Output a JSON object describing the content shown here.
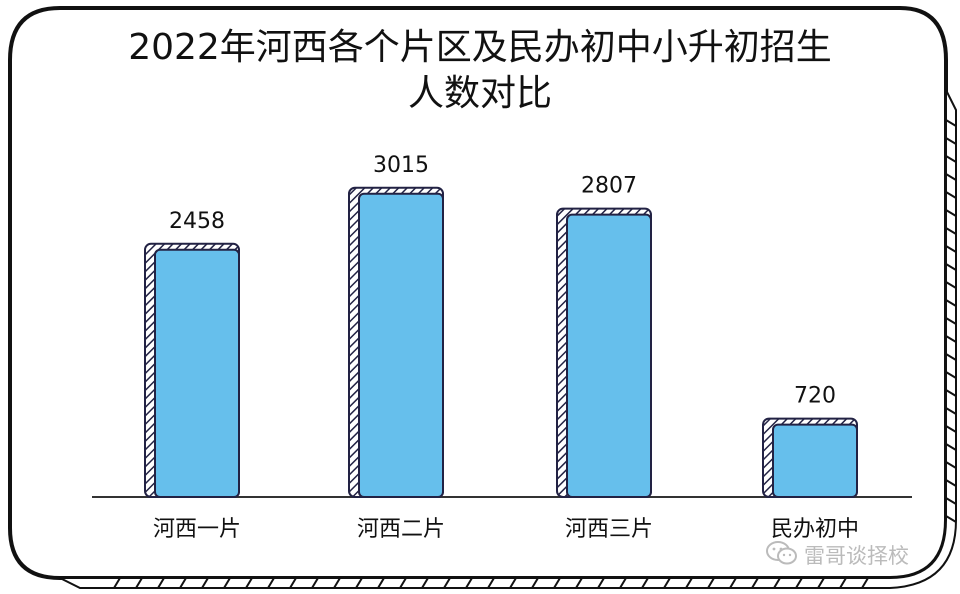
{
  "title_line1": "2022年河西各个片区及民办初中小升初招生",
  "title_line2": "人数对比",
  "colors": {
    "bar_fill": "#66bfec",
    "bar_outline": "#222244",
    "baseline": "#333333",
    "border": "#111111"
  },
  "watermark": {
    "text": "雷哥谈择校",
    "icon": "wechat-icon"
  },
  "chart_data": {
    "type": "bar",
    "title": "2022年河西各个片区及民办初中小升初招生人数对比",
    "categories": [
      "河西一片",
      "河西二片",
      "河西三片",
      "民办初中"
    ],
    "values": [
      2458,
      3015,
      2807,
      720
    ],
    "data_labels": [
      "2458",
      "3015",
      "2807",
      "720"
    ],
    "ylim": [
      0,
      3450
    ],
    "grid": false,
    "legend": "none"
  }
}
